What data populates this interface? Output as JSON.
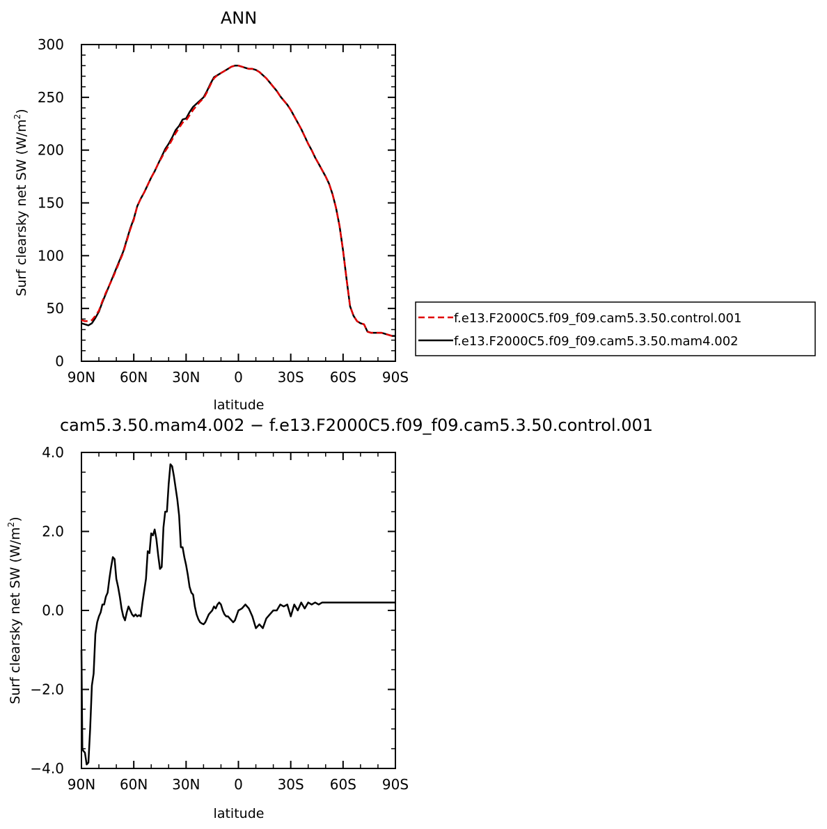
{
  "chart_data": [
    {
      "type": "line",
      "title": "ANN",
      "xlabel": "latitude",
      "ylabel": "Surf clearsky net SW (W/m",
      "ylabel_sup": "2",
      "ylabel_close": ")",
      "xlim": [
        90,
        -90
      ],
      "ylim": [
        0,
        300
      ],
      "x_ticks": [
        90,
        60,
        30,
        0,
        -30,
        -60,
        -90
      ],
      "x_tick_labels": [
        "90N",
        "60N",
        "30N",
        "0",
        "30S",
        "60S",
        "90S"
      ],
      "y_ticks": [
        0,
        50,
        100,
        150,
        200,
        250,
        300
      ],
      "y_tick_labels": [
        "0",
        "50",
        "100",
        "150",
        "200",
        "250",
        "300"
      ],
      "grid": false,
      "legend": "right",
      "series": [
        {
          "name": "f.e13.F2000C5.f09_f09.cam5.3.50.control.001",
          "color": "#e00000",
          "dash": "dashed",
          "x": [
            90,
            88,
            86,
            84,
            82,
            80,
            78,
            76,
            74,
            72,
            70,
            68,
            66,
            64,
            62,
            60,
            58,
            56,
            54,
            52,
            50,
            48,
            46,
            44,
            42,
            40,
            38,
            36,
            34,
            32,
            30,
            28,
            26,
            24,
            22,
            20,
            18,
            16,
            14,
            12,
            10,
            8,
            6,
            4,
            2,
            0,
            -2,
            -4,
            -6,
            -8,
            -10,
            -12,
            -14,
            -16,
            -18,
            -20,
            -22,
            -24,
            -26,
            -28,
            -30,
            -32,
            -34,
            -36,
            -38,
            -40,
            -42,
            -44,
            -46,
            -48,
            -50,
            -52,
            -54,
            -56,
            -58,
            -60,
            -62,
            -64,
            -66,
            -68,
            -70,
            -72,
            -74,
            -76,
            -78,
            -80,
            -82,
            -84,
            -86,
            -88,
            -90
          ],
          "y": [
            39,
            38,
            38,
            39,
            43,
            48,
            57,
            65,
            72,
            79,
            87,
            95,
            103,
            114,
            125,
            134,
            147,
            154,
            160,
            167,
            174,
            180,
            187,
            193,
            199,
            204,
            210,
            216,
            221,
            226,
            228,
            233,
            238,
            242,
            246,
            249,
            255,
            262,
            268,
            271,
            273,
            275,
            277,
            279,
            280,
            280,
            279,
            278,
            277,
            277,
            276,
            274,
            271,
            268,
            264,
            260,
            256,
            251,
            247,
            243,
            238,
            232,
            226,
            220,
            213,
            206,
            200,
            193,
            187,
            181,
            175,
            168,
            158,
            145,
            128,
            105,
            78,
            52,
            43,
            38,
            36,
            35,
            28,
            27,
            27,
            27,
            27,
            26,
            25,
            24,
            24
          ]
        },
        {
          "name": "f.e13.F2000C5.f09_f09.cam5.3.50.mam4.002",
          "color": "#000000",
          "dash": "solid",
          "x": [
            90,
            88,
            86,
            84,
            82,
            80,
            78,
            76,
            74,
            72,
            70,
            68,
            66,
            64,
            62,
            60,
            58,
            56,
            54,
            52,
            50,
            48,
            46,
            44,
            42,
            40,
            38,
            36,
            34,
            32,
            30,
            28,
            26,
            24,
            22,
            20,
            18,
            16,
            14,
            12,
            10,
            8,
            6,
            4,
            2,
            0,
            -2,
            -4,
            -6,
            -8,
            -10,
            -12,
            -14,
            -16,
            -18,
            -20,
            -22,
            -24,
            -26,
            -28,
            -30,
            -32,
            -34,
            -36,
            -38,
            -40,
            -42,
            -44,
            -46,
            -48,
            -50,
            -52,
            -54,
            -56,
            -58,
            -60,
            -62,
            -64,
            -66,
            -68,
            -70,
            -72,
            -74,
            -76,
            -78,
            -80,
            -82,
            -84,
            -86,
            -88,
            -90
          ],
          "y": [
            36,
            35,
            34,
            36,
            41,
            47,
            56,
            64,
            72,
            80,
            88,
            96,
            104,
            115,
            126,
            135,
            147,
            154,
            160,
            167,
            174,
            180,
            187,
            194,
            201,
            206,
            212,
            219,
            223,
            229,
            230,
            236,
            241,
            244,
            247,
            250,
            256,
            263,
            269,
            271,
            273,
            275,
            277,
            279,
            280,
            280,
            279,
            278,
            277,
            277,
            276,
            274,
            271,
            268,
            264,
            260,
            256,
            251,
            247,
            243,
            238,
            232,
            226,
            220,
            213,
            206,
            200,
            193,
            187,
            181,
            175,
            168,
            158,
            145,
            128,
            105,
            78,
            52,
            43,
            38,
            36,
            35,
            28,
            27,
            27,
            27,
            27,
            26,
            25,
            24,
            24
          ]
        }
      ]
    },
    {
      "type": "line",
      "title": "cam5.3.50.mam4.002 − f.e13.F2000C5.f09_f09.cam5.3.50.control.001",
      "xlabel": "latitude",
      "ylabel": "Surf clearsky net SW (W/m",
      "ylabel_sup": "2",
      "ylabel_close": ")",
      "xlim": [
        90,
        -90
      ],
      "ylim": [
        -4,
        4
      ],
      "x_ticks": [
        90,
        60,
        30,
        0,
        -30,
        -60,
        -90
      ],
      "x_tick_labels": [
        "90N",
        "60N",
        "30N",
        "0",
        "30S",
        "60S",
        "90S"
      ],
      "y_ticks": [
        -4,
        -2,
        0,
        2,
        4
      ],
      "y_tick_labels": [
        "−4.0",
        "−2.0",
        "0.0",
        "2.0",
        "4.0"
      ],
      "grid": false,
      "series": [
        {
          "color": "#000000",
          "dash": "solid",
          "x": [
            90,
            89.5,
            89,
            88,
            87,
            86,
            85,
            84,
            83,
            82,
            81,
            80,
            79,
            78,
            77,
            76,
            75,
            74,
            73,
            72,
            71,
            70,
            69,
            68,
            67,
            66,
            65,
            64,
            63,
            62,
            61,
            60,
            59,
            58,
            57,
            56,
            55,
            54,
            53,
            52,
            51,
            50,
            49,
            48,
            47,
            46,
            45,
            44,
            43,
            42,
            41,
            40,
            39,
            38,
            37,
            36,
            35,
            34,
            33,
            32,
            31,
            30,
            29,
            28,
            27,
            26,
            25,
            24,
            23,
            22,
            21,
            20,
            19,
            18,
            17,
            16,
            15,
            14,
            13,
            12,
            11,
            10,
            9,
            8,
            7,
            6,
            5,
            4,
            3,
            2,
            0,
            -2,
            -4,
            -6,
            -8,
            -10,
            -12,
            -14,
            -16,
            -18,
            -20,
            -22,
            -24,
            -26,
            -28,
            -30,
            -32,
            -34,
            -36,
            -38,
            -40,
            -42,
            -44,
            -46,
            -48,
            -50,
            -52,
            -54,
            -56,
            -58,
            -60,
            -62,
            -64,
            -66,
            -68,
            -70,
            -72,
            -74,
            -76,
            -78,
            -80,
            -82,
            -84,
            -86,
            -88,
            -90
          ],
          "y": [
            -1.0,
            -3.5,
            -3.55,
            -3.6,
            -3.9,
            -3.85,
            -3.0,
            -1.9,
            -1.6,
            -0.6,
            -0.3,
            -0.15,
            -0.05,
            0.15,
            0.15,
            0.35,
            0.45,
            0.8,
            1.1,
            1.35,
            1.3,
            0.8,
            0.6,
            0.35,
            0.05,
            -0.15,
            -0.25,
            -0.05,
            0.1,
            0.0,
            -0.1,
            -0.15,
            -0.1,
            -0.15,
            -0.12,
            -0.15,
            0.2,
            0.5,
            0.8,
            1.5,
            1.45,
            1.95,
            1.9,
            2.05,
            1.8,
            1.4,
            1.05,
            1.1,
            2.1,
            2.5,
            2.5,
            3.2,
            3.7,
            3.65,
            3.4,
            3.1,
            2.8,
            2.4,
            1.6,
            1.6,
            1.35,
            1.15,
            0.9,
            0.6,
            0.45,
            0.4,
            0.1,
            -0.1,
            -0.22,
            -0.3,
            -0.33,
            -0.35,
            -0.3,
            -0.2,
            -0.1,
            -0.05,
            0.0,
            0.1,
            0.05,
            0.15,
            0.2,
            0.15,
            0.0,
            -0.1,
            -0.15,
            -0.15,
            -0.2,
            -0.25,
            -0.3,
            -0.25,
            0.0,
            0.05,
            0.15,
            0.05,
            -0.15,
            -0.45,
            -0.35,
            -0.45,
            -0.2,
            -0.1,
            0.0,
            0.0,
            0.15,
            0.1,
            0.15,
            -0.15,
            0.15,
            0.0,
            0.2,
            0.05,
            0.2,
            0.15,
            0.2,
            0.15,
            0.2,
            0.2,
            0.2,
            0.2,
            0.2,
            0.2,
            0.2,
            0.2,
            0.2,
            0.2,
            0.2,
            0.2,
            0.2,
            0.2,
            0.2,
            0.2,
            0.2,
            0.2,
            0.2,
            0.2,
            0.2,
            0.2
          ]
        }
      ]
    }
  ]
}
